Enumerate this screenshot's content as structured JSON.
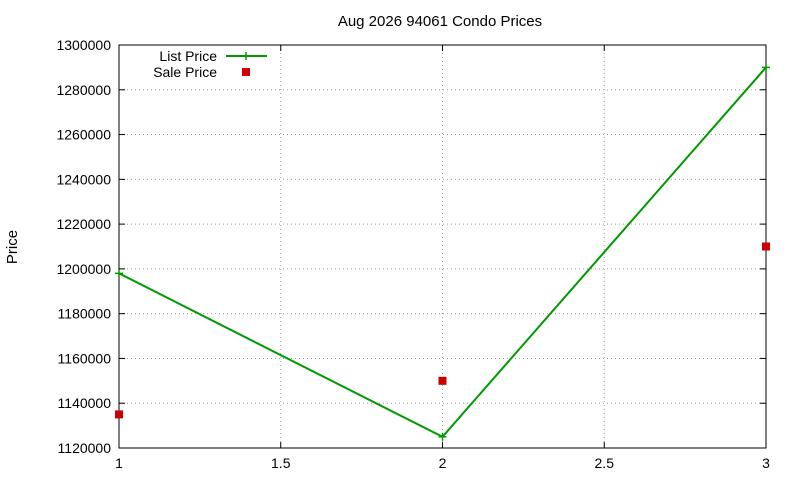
{
  "chart_data": {
    "type": "line",
    "title": "Aug 2026 94061 Condo Prices",
    "xlabel": "",
    "ylabel": "Price",
    "xlim": [
      1,
      3
    ],
    "ylim": [
      1120000,
      1300000
    ],
    "xticks": [
      1,
      1.5,
      2,
      2.5,
      3
    ],
    "xtick_labels": [
      "1",
      "1.5",
      "2",
      "2.5",
      "3"
    ],
    "yticks": [
      1120000,
      1140000,
      1160000,
      1180000,
      1200000,
      1220000,
      1240000,
      1260000,
      1280000,
      1300000
    ],
    "ytick_labels": [
      "1120000",
      "1140000",
      "1160000",
      "1180000",
      "1200000",
      "1220000",
      "1240000",
      "1260000",
      "1280000",
      "1300000"
    ],
    "grid": true,
    "legend_position": "top-left",
    "series": [
      {
        "name": "List Price",
        "style": "line+cross",
        "color": "#009900",
        "x": [
          1,
          2,
          3
        ],
        "y": [
          1198000,
          1125000,
          1290000
        ]
      },
      {
        "name": "Sale Price",
        "style": "square-points",
        "color": "#cc0000",
        "x": [
          1,
          2,
          3
        ],
        "y": [
          1135000,
          1150000,
          1210000
        ]
      }
    ]
  }
}
